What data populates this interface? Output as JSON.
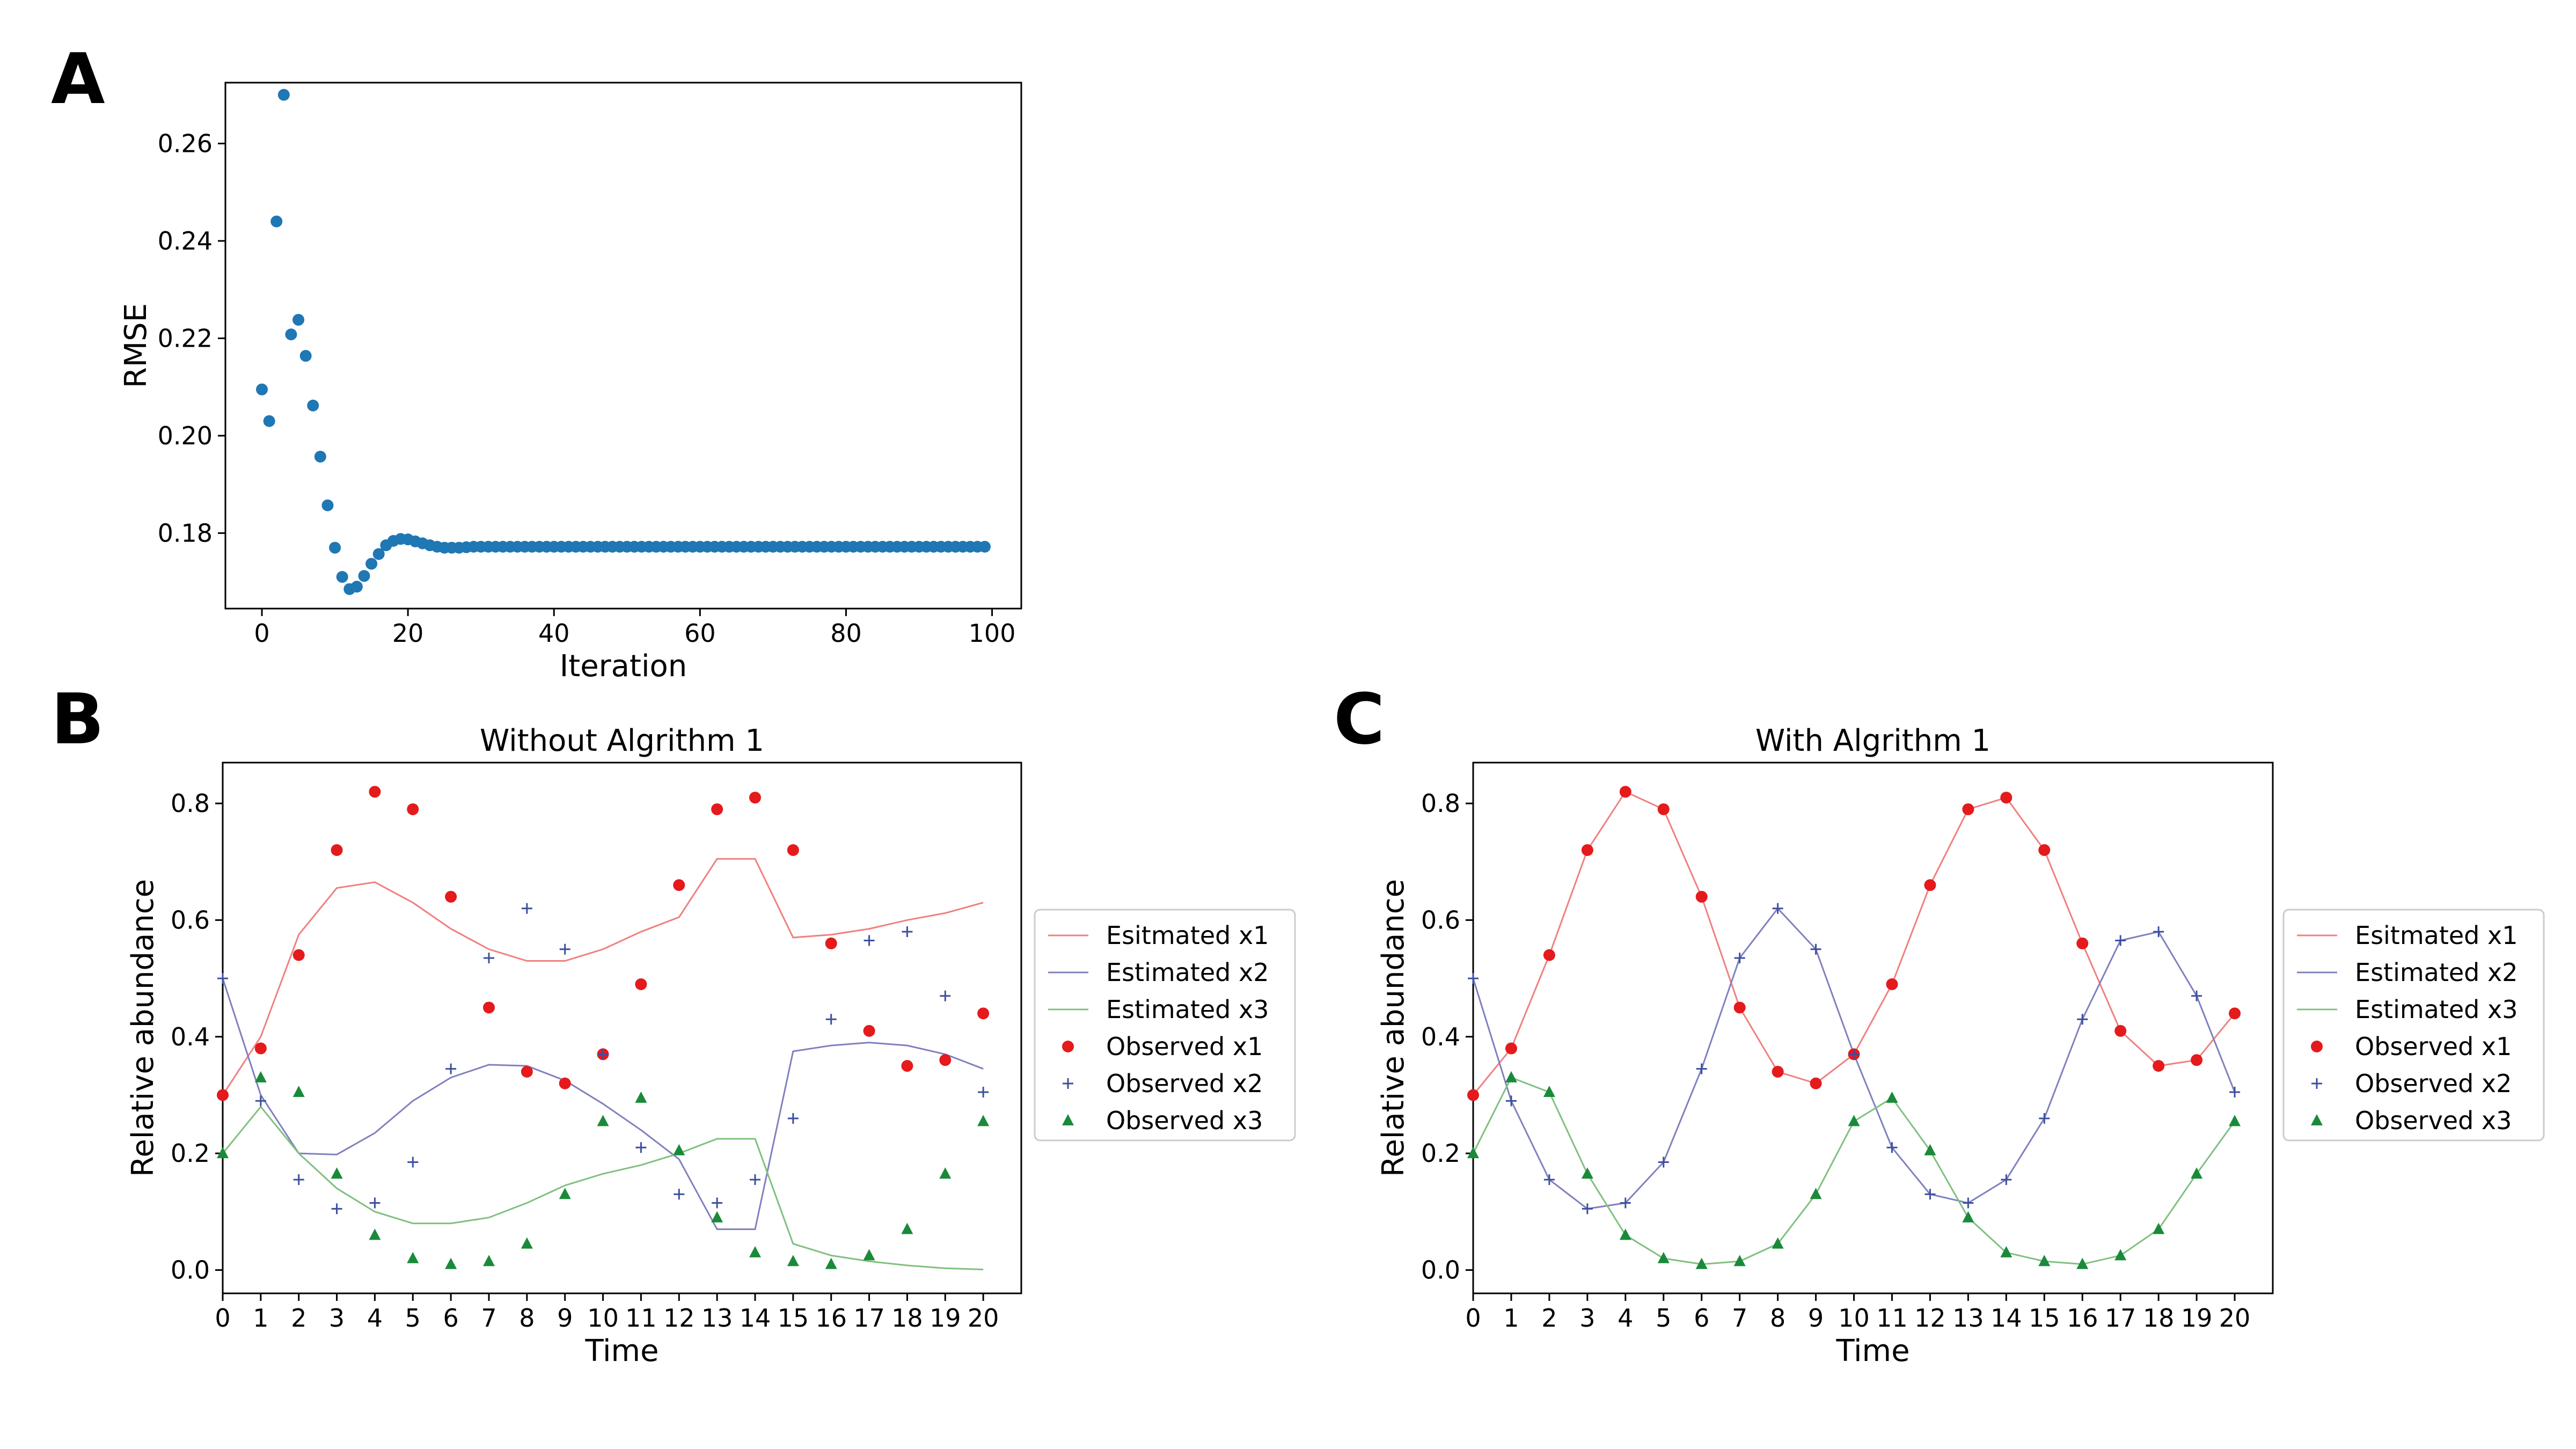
{
  "panels": {
    "A": {
      "letter": "A"
    },
    "B": {
      "letter": "B"
    },
    "C": {
      "letter": "C"
    }
  },
  "colors": {
    "rmse_dot": "#1f77b4",
    "x1": "#e41a1c",
    "x2": "#3c4fa0",
    "x3": "#1a8a3a",
    "est_x1_line": "#f08080",
    "est_x2_line": "#8080c0",
    "est_x3_line": "#80c080"
  },
  "chart_data": [
    {
      "id": "A",
      "type": "scatter",
      "title": "",
      "xlabel": "Iteration",
      "ylabel": "RMSE",
      "xlim": [
        -5,
        104
      ],
      "ylim": [
        0.1645,
        0.2725
      ],
      "xticks": [
        0,
        20,
        40,
        60,
        80,
        100
      ],
      "yticks": [
        0.18,
        0.2,
        0.22,
        0.24,
        0.26
      ],
      "ytick_labels": [
        "0.18",
        "0.20",
        "0.22",
        "0.24",
        "0.26"
      ],
      "grid": false,
      "series": [
        {
          "x_start": 0,
          "values": [
            0.2095,
            0.203,
            0.244,
            0.27,
            0.2208,
            0.2238,
            0.2164,
            0.2062,
            0.1957,
            0.1857,
            0.177,
            0.171,
            0.1685,
            0.169,
            0.1712,
            0.1737,
            0.1757,
            0.1775,
            0.1784,
            0.1788,
            0.1787,
            0.1783,
            0.1779,
            0.1775,
            0.1772,
            0.177,
            0.177,
            0.177,
            0.1771,
            0.1772,
            0.1772,
            0.1772,
            0.1772,
            0.1772,
            0.1772,
            0.1772,
            0.1772,
            0.1772,
            0.1772,
            0.1772,
            0.1772,
            0.1772,
            0.1772,
            0.1772,
            0.1772,
            0.1772,
            0.1772,
            0.1772,
            0.1772,
            0.1772,
            0.1772,
            0.1772,
            0.1772,
            0.1772,
            0.1772,
            0.1772,
            0.1772,
            0.1772,
            0.1772,
            0.1772,
            0.1772,
            0.1772,
            0.1772,
            0.1772,
            0.1772,
            0.1772,
            0.1772,
            0.1772,
            0.1772,
            0.1772,
            0.1772,
            0.1772,
            0.1772,
            0.1772,
            0.1772,
            0.1772,
            0.1772,
            0.1772,
            0.1772,
            0.1772,
            0.1772,
            0.1772,
            0.1772,
            0.1772,
            0.1772,
            0.1772,
            0.1772,
            0.1772,
            0.1772,
            0.1772,
            0.1772,
            0.1772,
            0.1772,
            0.1772,
            0.1772,
            0.1772,
            0.1772,
            0.1772,
            0.1772,
            0.1772
          ]
        }
      ]
    },
    {
      "id": "B",
      "type": "line",
      "title": "Without Algrithm 1",
      "xlabel": "Time",
      "ylabel": "Relative abundance",
      "xlim": [
        0,
        21
      ],
      "ylim": [
        -0.04,
        0.87
      ],
      "xticks": [
        0,
        1,
        2,
        3,
        4,
        5,
        6,
        7,
        8,
        9,
        10,
        11,
        12,
        13,
        14,
        15,
        16,
        17,
        18,
        19,
        20
      ],
      "yticks": [
        0.0,
        0.2,
        0.4,
        0.6,
        0.8
      ],
      "ytick_labels": [
        "0.0",
        "0.2",
        "0.4",
        "0.6",
        "0.8"
      ],
      "legend_position": "right-outside",
      "x": [
        0,
        1,
        2,
        3,
        4,
        5,
        6,
        7,
        8,
        9,
        10,
        11,
        12,
        13,
        14,
        15,
        16,
        17,
        18,
        19,
        20
      ],
      "series": [
        {
          "name": "Esitmated x1",
          "kind": "line",
          "color_key": "est_x1_line",
          "values": [
            0.3,
            0.4,
            0.575,
            0.655,
            0.665,
            0.63,
            0.585,
            0.55,
            0.53,
            0.53,
            0.55,
            0.58,
            0.605,
            0.705,
            0.705,
            0.57,
            0.575,
            0.585,
            0.6,
            0.612,
            0.63
          ]
        },
        {
          "name": "Estimated x2",
          "kind": "line",
          "color_key": "est_x2_line",
          "values": [
            0.5,
            0.3,
            0.2,
            0.198,
            0.235,
            0.29,
            0.33,
            0.352,
            0.35,
            0.325,
            0.285,
            0.24,
            0.19,
            0.07,
            0.07,
            0.375,
            0.385,
            0.39,
            0.385,
            0.37,
            0.345
          ]
        },
        {
          "name": "Estimated x3",
          "kind": "line",
          "color_key": "est_x3_line",
          "values": [
            0.2,
            0.28,
            0.2,
            0.14,
            0.1,
            0.08,
            0.08,
            0.09,
            0.115,
            0.145,
            0.165,
            0.18,
            0.2,
            0.225,
            0.225,
            0.045,
            0.025,
            0.015,
            0.008,
            0.003,
            0.001
          ]
        },
        {
          "name": "Observed x1",
          "kind": "circle",
          "color_key": "x1",
          "values": [
            0.3,
            0.38,
            0.54,
            0.72,
            0.82,
            0.79,
            0.64,
            0.45,
            0.34,
            0.32,
            0.37,
            0.49,
            0.66,
            0.79,
            0.81,
            0.72,
            0.56,
            0.41,
            0.35,
            0.36,
            0.44
          ]
        },
        {
          "name": "Observed x2",
          "kind": "plus",
          "color_key": "x2",
          "values": [
            0.5,
            0.29,
            0.155,
            0.105,
            0.115,
            0.185,
            0.345,
            0.535,
            0.62,
            0.55,
            0.37,
            0.21,
            0.13,
            0.115,
            0.155,
            0.26,
            0.43,
            0.565,
            0.58,
            0.47,
            0.305
          ]
        },
        {
          "name": "Observed x3",
          "kind": "triangle",
          "color_key": "x3",
          "values": [
            0.2,
            0.33,
            0.305,
            0.165,
            0.06,
            0.02,
            0.01,
            0.015,
            0.045,
            0.13,
            0.255,
            0.295,
            0.205,
            0.09,
            0.03,
            0.015,
            0.01,
            0.025,
            0.07,
            0.165,
            0.255
          ]
        }
      ]
    },
    {
      "id": "C",
      "type": "line",
      "title": "With Algrithm 1",
      "xlabel": "Time",
      "ylabel": "Relative abundance",
      "xlim": [
        0,
        21
      ],
      "ylim": [
        -0.04,
        0.87
      ],
      "xticks": [
        0,
        1,
        2,
        3,
        4,
        5,
        6,
        7,
        8,
        9,
        10,
        11,
        12,
        13,
        14,
        15,
        16,
        17,
        18,
        19,
        20
      ],
      "yticks": [
        0.0,
        0.2,
        0.4,
        0.6,
        0.8
      ],
      "ytick_labels": [
        "0.0",
        "0.2",
        "0.4",
        "0.6",
        "0.8"
      ],
      "legend_position": "right-outside",
      "x": [
        0,
        1,
        2,
        3,
        4,
        5,
        6,
        7,
        8,
        9,
        10,
        11,
        12,
        13,
        14,
        15,
        16,
        17,
        18,
        19,
        20
      ],
      "series": [
        {
          "name": "Esitmated x1",
          "kind": "line",
          "color_key": "est_x1_line",
          "values": [
            0.3,
            0.38,
            0.54,
            0.72,
            0.82,
            0.79,
            0.64,
            0.45,
            0.34,
            0.32,
            0.37,
            0.49,
            0.66,
            0.79,
            0.81,
            0.72,
            0.56,
            0.41,
            0.35,
            0.36,
            0.44
          ]
        },
        {
          "name": "Estimated x2",
          "kind": "line",
          "color_key": "est_x2_line",
          "values": [
            0.5,
            0.29,
            0.155,
            0.105,
            0.115,
            0.185,
            0.345,
            0.535,
            0.62,
            0.55,
            0.37,
            0.21,
            0.13,
            0.115,
            0.155,
            0.26,
            0.43,
            0.565,
            0.58,
            0.47,
            0.305
          ]
        },
        {
          "name": "Estimated x3",
          "kind": "line",
          "color_key": "est_x3_line",
          "values": [
            0.2,
            0.33,
            0.305,
            0.165,
            0.06,
            0.02,
            0.01,
            0.015,
            0.045,
            0.13,
            0.255,
            0.295,
            0.205,
            0.09,
            0.03,
            0.015,
            0.01,
            0.025,
            0.07,
            0.165,
            0.255
          ]
        },
        {
          "name": "Observed x1",
          "kind": "circle",
          "color_key": "x1",
          "values": [
            0.3,
            0.38,
            0.54,
            0.72,
            0.82,
            0.79,
            0.64,
            0.45,
            0.34,
            0.32,
            0.37,
            0.49,
            0.66,
            0.79,
            0.81,
            0.72,
            0.56,
            0.41,
            0.35,
            0.36,
            0.44
          ]
        },
        {
          "name": "Observed x2",
          "kind": "plus",
          "color_key": "x2",
          "values": [
            0.5,
            0.29,
            0.155,
            0.105,
            0.115,
            0.185,
            0.345,
            0.535,
            0.62,
            0.55,
            0.37,
            0.21,
            0.13,
            0.115,
            0.155,
            0.26,
            0.43,
            0.565,
            0.58,
            0.47,
            0.305
          ]
        },
        {
          "name": "Observed x3",
          "kind": "triangle",
          "color_key": "x3",
          "values": [
            0.2,
            0.33,
            0.305,
            0.165,
            0.06,
            0.02,
            0.01,
            0.015,
            0.045,
            0.13,
            0.255,
            0.295,
            0.205,
            0.09,
            0.03,
            0.015,
            0.01,
            0.025,
            0.07,
            0.165,
            0.255
          ]
        }
      ]
    }
  ]
}
